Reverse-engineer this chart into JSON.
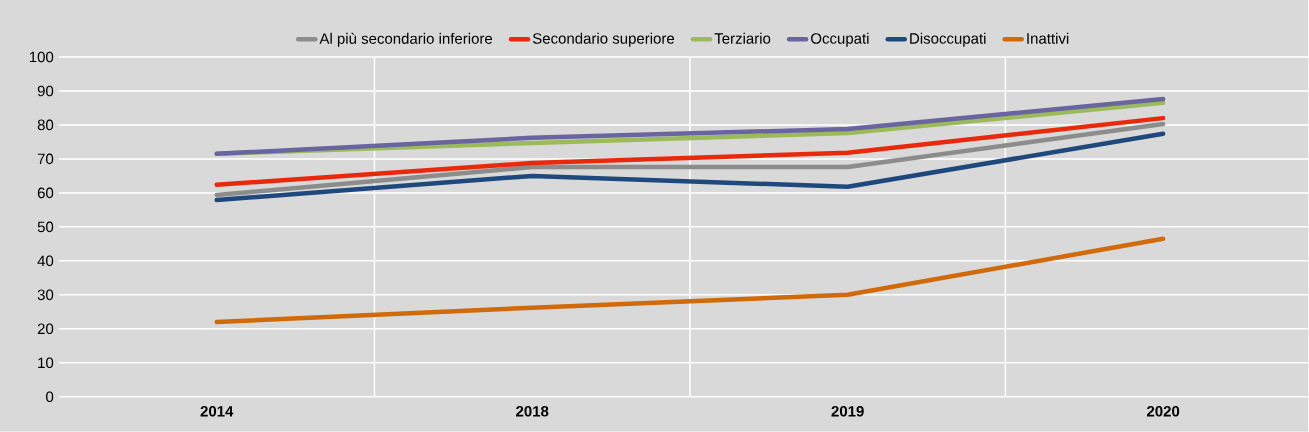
{
  "chart_data": {
    "type": "line",
    "categories": [
      "2014",
      "2018",
      "2019",
      "2020"
    ],
    "series": [
      {
        "name": "Al più secondario inferiore",
        "color": "#8c8c8c",
        "values": [
          59.4,
          67.6,
          67.6,
          80.3
        ]
      },
      {
        "name": "Secondario superiore",
        "color": "#e8290b",
        "values": [
          62.4,
          68.8,
          71.8,
          82
        ]
      },
      {
        "name": "Terziario",
        "color": "#9bbb59",
        "values": [
          71.5,
          74.7,
          77.6,
          86.5
        ]
      },
      {
        "name": "Occupati",
        "color": "#6a64a0",
        "values": [
          71.5,
          76.2,
          78.8,
          87.6
        ]
      },
      {
        "name": "Disoccupati",
        "color": "#1f497d",
        "values": [
          57.9,
          65,
          61.8,
          77.4
        ]
      },
      {
        "name": "Inattivi",
        "color": "#d06a0a",
        "values": [
          22,
          26.2,
          30,
          46.5
        ]
      }
    ],
    "ylim": [
      0,
      100
    ],
    "yticks": [
      0,
      10,
      20,
      30,
      40,
      50,
      60,
      70,
      80,
      90,
      100
    ],
    "grid": true,
    "legend": "top",
    "marker": "none",
    "line_style": "solid"
  }
}
